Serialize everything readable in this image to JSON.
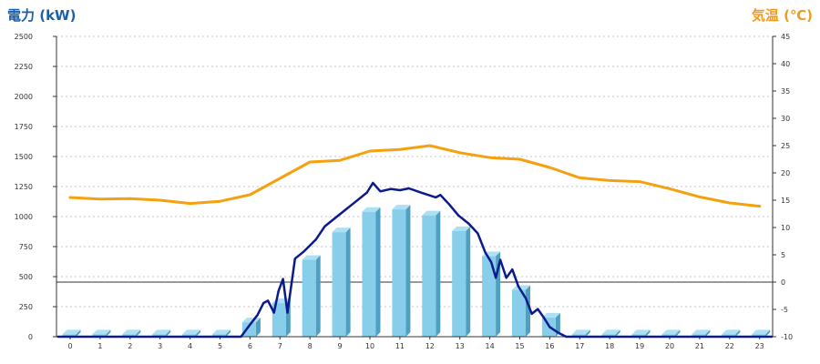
{
  "chart_data": {
    "type": "bar+line",
    "left_axis": {
      "label": "電力 (kW)",
      "min": 0,
      "max": 2500,
      "ticks": [
        0,
        250,
        500,
        750,
        1000,
        1250,
        1500,
        1750,
        2000,
        2250,
        2500
      ]
    },
    "right_axis": {
      "label": "気温 (℃)",
      "min": -10,
      "max": 45,
      "ticks": [
        -10,
        -5,
        0,
        5,
        10,
        15,
        20,
        25,
        30,
        35,
        40,
        45
      ]
    },
    "categories": [
      "0",
      "1",
      "2",
      "3",
      "4",
      "5",
      "6",
      "7",
      "8",
      "9",
      "10",
      "11",
      "12",
      "13",
      "14",
      "15",
      "16",
      "17",
      "18",
      "19",
      "20",
      "21",
      "22",
      "23"
    ],
    "grid": true,
    "colors": {
      "bar_face": "#87ceeb",
      "bar_side": "#4f9fc0",
      "bar_top": "#aee0f4",
      "power_line": "#0b1a8c",
      "temp_line": "#f5a10f",
      "left_title": "#1a5fa8",
      "right_title": "#f39a1e"
    },
    "bars": [
      {
        "x": 0,
        "value": 20
      },
      {
        "x": 1,
        "value": 20
      },
      {
        "x": 2,
        "value": 20
      },
      {
        "x": 3,
        "value": 20
      },
      {
        "x": 4,
        "value": 20
      },
      {
        "x": 5,
        "value": 20
      },
      {
        "x": 6,
        "value": 120
      },
      {
        "x": 7,
        "value": 280
      },
      {
        "x": 8,
        "value": 640
      },
      {
        "x": 9,
        "value": 870
      },
      {
        "x": 10,
        "value": 1040
      },
      {
        "x": 11,
        "value": 1060
      },
      {
        "x": 12,
        "value": 1010
      },
      {
        "x": 13,
        "value": 880
      },
      {
        "x": 14,
        "value": 670
      },
      {
        "x": 15,
        "value": 390
      },
      {
        "x": 16,
        "value": 160
      },
      {
        "x": 17,
        "value": 20
      },
      {
        "x": 18,
        "value": 20
      },
      {
        "x": 19,
        "value": 20
      },
      {
        "x": 20,
        "value": 20
      },
      {
        "x": 21,
        "value": 20
      },
      {
        "x": 22,
        "value": 20
      },
      {
        "x": 23,
        "value": 20
      }
    ],
    "temperature": [
      {
        "x": 0,
        "value": 15.5
      },
      {
        "x": 1,
        "value": 15.2
      },
      {
        "x": 2,
        "value": 15.3
      },
      {
        "x": 3,
        "value": 15.0
      },
      {
        "x": 4,
        "value": 14.4
      },
      {
        "x": 5,
        "value": 14.8
      },
      {
        "x": 6,
        "value": 16.0
      },
      {
        "x": 7,
        "value": 19.0
      },
      {
        "x": 8,
        "value": 22.0
      },
      {
        "x": 9,
        "value": 22.3
      },
      {
        "x": 10,
        "value": 24.0
      },
      {
        "x": 11,
        "value": 24.3
      },
      {
        "x": 12,
        "value": 25.0
      },
      {
        "x": 13,
        "value": 23.7
      },
      {
        "x": 14,
        "value": 22.8
      },
      {
        "x": 15,
        "value": 22.5
      },
      {
        "x": 16,
        "value": 21.0
      },
      {
        "x": 17,
        "value": 19.1
      },
      {
        "x": 18,
        "value": 18.6
      },
      {
        "x": 19,
        "value": 18.4
      },
      {
        "x": 20,
        "value": 17.1
      },
      {
        "x": 21,
        "value": 15.6
      },
      {
        "x": 22,
        "value": 14.5
      },
      {
        "x": 23,
        "value": 13.9
      }
    ],
    "power_line": [
      {
        "x": -0.4,
        "value": 0
      },
      {
        "x": 5.7,
        "value": 0
      },
      {
        "x": 6.0,
        "value": 100
      },
      {
        "x": 6.25,
        "value": 180
      },
      {
        "x": 6.45,
        "value": 280
      },
      {
        "x": 6.6,
        "value": 300
      },
      {
        "x": 6.8,
        "value": 200
      },
      {
        "x": 6.95,
        "value": 380
      },
      {
        "x": 7.1,
        "value": 480
      },
      {
        "x": 7.25,
        "value": 200
      },
      {
        "x": 7.5,
        "value": 650
      },
      {
        "x": 7.8,
        "value": 710
      },
      {
        "x": 8.2,
        "value": 810
      },
      {
        "x": 8.5,
        "value": 920
      },
      {
        "x": 9.0,
        "value": 1020
      },
      {
        "x": 9.5,
        "value": 1120
      },
      {
        "x": 9.9,
        "value": 1200
      },
      {
        "x": 10.1,
        "value": 1280
      },
      {
        "x": 10.35,
        "value": 1210
      },
      {
        "x": 10.7,
        "value": 1230
      },
      {
        "x": 11.0,
        "value": 1220
      },
      {
        "x": 11.3,
        "value": 1235
      },
      {
        "x": 11.7,
        "value": 1200
      },
      {
        "x": 12.2,
        "value": 1160
      },
      {
        "x": 12.35,
        "value": 1180
      },
      {
        "x": 12.65,
        "value": 1100
      },
      {
        "x": 12.95,
        "value": 1010
      },
      {
        "x": 13.3,
        "value": 940
      },
      {
        "x": 13.6,
        "value": 860
      },
      {
        "x": 13.85,
        "value": 700
      },
      {
        "x": 14.05,
        "value": 620
      },
      {
        "x": 14.2,
        "value": 490
      },
      {
        "x": 14.35,
        "value": 640
      },
      {
        "x": 14.55,
        "value": 490
      },
      {
        "x": 14.75,
        "value": 560
      },
      {
        "x": 14.95,
        "value": 420
      },
      {
        "x": 15.2,
        "value": 320
      },
      {
        "x": 15.4,
        "value": 190
      },
      {
        "x": 15.6,
        "value": 230
      },
      {
        "x": 15.8,
        "value": 160
      },
      {
        "x": 16.0,
        "value": 80
      },
      {
        "x": 16.3,
        "value": 30
      },
      {
        "x": 16.55,
        "value": 0
      },
      {
        "x": 23.4,
        "value": 0
      }
    ]
  }
}
